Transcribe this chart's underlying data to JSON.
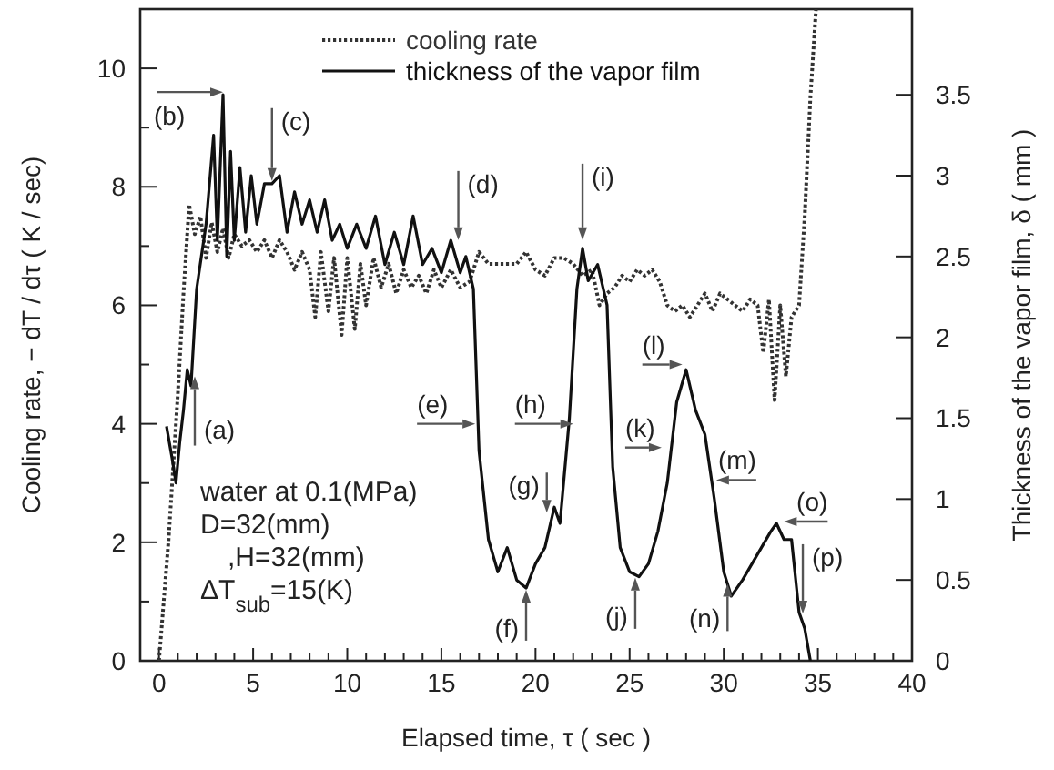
{
  "chart_data": {
    "type": "line",
    "xlabel": "Elapsed time, τ ( sec )",
    "ylabel": "Cooling rate, − dT / dτ ( K / sec)",
    "y2label": "Thickness of the vapor film, δ ( mm )",
    "xlim": [
      -1,
      40
    ],
    "xticks": [
      0,
      {
        "value": 1,
        "label": null
      },
      {
        "value": 2,
        "label": null
      },
      {
        "value": 3,
        "label": null
      },
      {
        "value": 4,
        "label": null
      },
      5,
      {
        "value": 6,
        "label": null
      },
      {
        "value": 7,
        "label": null
      },
      {
        "value": 8,
        "label": null
      },
      {
        "value": 9,
        "label": null
      },
      10,
      {
        "value": 11,
        "label": null
      },
      {
        "value": 12,
        "label": null
      },
      {
        "value": 13,
        "label": null
      },
      {
        "value": 14,
        "label": null
      },
      15,
      {
        "value": 16,
        "label": null
      },
      {
        "value": 17,
        "label": null
      },
      {
        "value": 18,
        "label": null
      },
      {
        "value": 19,
        "label": null
      },
      20,
      {
        "value": 21,
        "label": null
      },
      {
        "value": 22,
        "label": null
      },
      {
        "value": 23,
        "label": null
      },
      {
        "value": 24,
        "label": null
      },
      25,
      {
        "value": 26,
        "label": null
      },
      {
        "value": 27,
        "label": null
      },
      {
        "value": 28,
        "label": null
      },
      {
        "value": 29,
        "label": null
      },
      30,
      {
        "value": 31,
        "label": null
      },
      {
        "value": 32,
        "label": null
      },
      {
        "value": 33,
        "label": null
      },
      {
        "value": 34,
        "label": null
      },
      35,
      {
        "value": 36,
        "label": null
      },
      {
        "value": 37,
        "label": null
      },
      {
        "value": 38,
        "label": null
      },
      {
        "value": 39,
        "label": null
      },
      40
    ],
    "ylim": [
      0,
      11
    ],
    "yticks": [
      0,
      {
        "value": 1,
        "label": null
      },
      2,
      {
        "value": 3,
        "label": null
      },
      4,
      {
        "value": 5,
        "label": null
      },
      6,
      {
        "value": 7,
        "label": null
      },
      8,
      {
        "value": 9,
        "label": null
      },
      10,
      {
        "value": 11,
        "label": null
      }
    ],
    "y2lim": [
      0,
      4.03
    ],
    "y2ticks": [
      0,
      0.5,
      1,
      1.5,
      2,
      2.5,
      3,
      3.5
    ],
    "legend": "top",
    "grid": false,
    "marker": "none",
    "series": [
      {
        "name": "cooling rate",
        "color": "#333333",
        "line_style": "dotted",
        "x": [
          0,
          0.5,
          1,
          1.3,
          1.6,
          1.9,
          2.2,
          2.5,
          2.8,
          3.1,
          3.4,
          3.7,
          4,
          4.4,
          4.8,
          5.2,
          5.6,
          6,
          6.4,
          6.8,
          7.2,
          7.6,
          8,
          8.3,
          8.6,
          9,
          9.3,
          9.7,
          10,
          10.4,
          10.7,
          11,
          11.4,
          11.8,
          12.2,
          12.6,
          13,
          13.4,
          13.8,
          14.2,
          14.6,
          15,
          15.5,
          16,
          16.5,
          17,
          17.5,
          18,
          18.5,
          19,
          19.5,
          20,
          20.5,
          21,
          21.5,
          22,
          22.5,
          23,
          23.4,
          23.8,
          24.2,
          24.6,
          25,
          25.4,
          25.8,
          26.2,
          26.6,
          27,
          27.4,
          27.8,
          28.2,
          28.6,
          29,
          29.4,
          29.8,
          30.2,
          30.6,
          31,
          31.4,
          31.8,
          32.1,
          32.4,
          32.7,
          33,
          33.3,
          33.6,
          34,
          34.3,
          34.6,
          34.9
        ],
        "values": [
          0,
          2,
          4.5,
          6.2,
          7.7,
          7.2,
          7.5,
          6.8,
          7.4,
          6.9,
          7.3,
          6.8,
          7.2,
          7,
          7.1,
          6.9,
          7.1,
          6.8,
          7.1,
          6.9,
          6.6,
          6.9,
          6.6,
          5.8,
          6.9,
          5.9,
          6.8,
          5.5,
          6.8,
          5.6,
          6.7,
          6,
          6.8,
          6.3,
          6.7,
          6.2,
          6.6,
          6.3,
          6.5,
          6.2,
          6.6,
          6.3,
          6.6,
          6.3,
          6.4,
          6.9,
          6.7,
          6.7,
          6.7,
          6.7,
          6.9,
          6.6,
          6.5,
          6.8,
          6.8,
          6.7,
          6.5,
          6.6,
          6,
          6.2,
          6.3,
          6.5,
          6.4,
          6.6,
          6.5,
          6.6,
          6.4,
          6,
          5.9,
          6,
          5.8,
          6,
          6.2,
          5.9,
          6.2,
          6.1,
          6,
          5.9,
          6.1,
          6,
          5.2,
          6.1,
          4.4,
          6,
          4.8,
          5.8,
          6,
          7.5,
          9.5,
          11
        ]
      },
      {
        "name": "thickness of the vapor film",
        "color": "#111111",
        "line_style": "solid",
        "axis": "y2",
        "x": [
          0.4,
          0.7,
          0.9,
          1.1,
          1.3,
          1.5,
          1.7,
          2,
          2.5,
          2.9,
          3.1,
          3.4,
          3.6,
          3.8,
          4,
          4.3,
          4.6,
          4.9,
          5.2,
          5.6,
          6,
          6.4,
          6.8,
          7.2,
          7.6,
          8,
          8.4,
          8.8,
          9.2,
          9.6,
          10,
          10.5,
          11,
          11.5,
          12,
          12.5,
          13,
          13.5,
          14,
          14.5,
          15,
          15.5,
          16,
          16.3,
          16.7,
          17,
          17.5,
          18,
          18.5,
          19,
          19.5,
          20,
          20.5,
          21,
          21.3,
          21.8,
          22.2,
          22.5,
          22.8,
          23.3,
          23.8,
          24.1,
          24.5,
          25,
          25.5,
          26,
          26.5,
          27,
          27.5,
          28,
          28.5,
          29,
          29.5,
          30,
          30.4,
          31,
          31.5,
          32,
          32.5,
          32.8,
          33.2,
          33.6,
          34,
          34.3,
          34.6
        ],
        "values": [
          1.45,
          1.25,
          1.1,
          1.35,
          1.55,
          1.8,
          1.7,
          2.3,
          2.7,
          3.25,
          2.6,
          3.5,
          2.5,
          3.15,
          2.6,
          3.05,
          2.65,
          3,
          2.7,
          2.95,
          2.95,
          3,
          2.65,
          2.9,
          2.7,
          2.85,
          2.65,
          2.85,
          2.6,
          2.7,
          2.55,
          2.7,
          2.55,
          2.75,
          2.45,
          2.65,
          2.45,
          2.75,
          2.45,
          2.55,
          2.4,
          2.6,
          2.4,
          2.5,
          2.3,
          1.3,
          0.75,
          0.55,
          0.7,
          0.5,
          0.45,
          0.6,
          0.7,
          0.95,
          0.85,
          1.5,
          2.3,
          2.55,
          2.35,
          2.45,
          2.2,
          1.2,
          0.7,
          0.55,
          0.52,
          0.6,
          0.8,
          1.1,
          1.6,
          1.8,
          1.55,
          1.4,
          1,
          0.55,
          0.4,
          0.5,
          0.6,
          0.7,
          0.8,
          0.85,
          0.75,
          0.75,
          0.3,
          0.2,
          0
        ]
      }
    ],
    "annotations": [
      {
        "text": "(a)",
        "x": 1.9,
        "y": 4.8
      },
      {
        "text": "(b)",
        "x": 3.4,
        "y": 9.6
      },
      {
        "text": "(c)",
        "x": 6,
        "y": 8.1
      },
      {
        "text": "(d)",
        "x": 15.9,
        "y": 7.1
      },
      {
        "text": "(e)",
        "x": 16.8,
        "y": 4
      },
      {
        "text": "(f)",
        "x": 19.5,
        "y": 1.2
      },
      {
        "text": "(g)",
        "x": 20.6,
        "y": 2.5
      },
      {
        "text": "(h)",
        "x": 22,
        "y": 4
      },
      {
        "text": "(i)",
        "x": 22.5,
        "y": 7.1
      },
      {
        "text": "(j)",
        "x": 25.3,
        "y": 1.4
      },
      {
        "text": "(k)",
        "x": 26.7,
        "y": 3.6
      },
      {
        "text": "(l)",
        "x": 27.8,
        "y": 5
      },
      {
        "text": "(m)",
        "x": 29.6,
        "y": 3.05
      },
      {
        "text": "(n)",
        "x": 30.2,
        "y": 1.3
      },
      {
        "text": "(o)",
        "x": 33.2,
        "y": 2.35
      },
      {
        "text": "(p)",
        "x": 34.2,
        "y": 0.8
      },
      "water at 0.1(MPa)",
      "D=32(mm)",
      ",H=32(mm)",
      "ΔT$_{sub}$=15(K)"
    ]
  }
}
